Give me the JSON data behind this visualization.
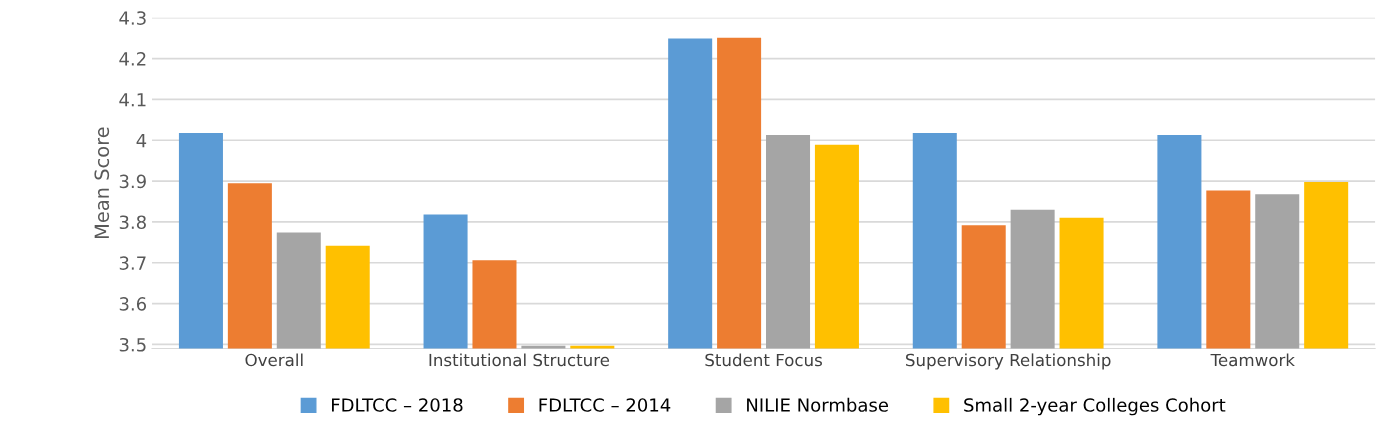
{
  "chart_data": {
    "type": "bar",
    "ylabel": "Mean Score",
    "categories": [
      "Overall",
      "Institutional Structure",
      "Student Focus",
      "Supervisory Relationship",
      "Teamwork"
    ],
    "series": [
      {
        "name": "FDLTCC – 2018",
        "color": "#5b9bd5",
        "values": [
          4.018,
          3.818,
          4.249,
          4.018,
          4.013
        ]
      },
      {
        "name": "FDLTCC – 2014",
        "color": "#ed7d31",
        "values": [
          3.895,
          3.706,
          4.251,
          3.792,
          3.877
        ]
      },
      {
        "name": "NILIE Normbase",
        "color": "#a5a5a5",
        "values": [
          3.774,
          3.497,
          4.013,
          3.83,
          3.868
        ]
      },
      {
        "name": "Small 2-year Colleges Cohort",
        "color": "#ffc000",
        "values": [
          3.742,
          3.497,
          3.989,
          3.81,
          3.898
        ]
      }
    ],
    "ylim": [
      3.49,
      4.3
    ],
    "yticks": [
      3.5,
      3.6,
      3.7,
      3.8,
      3.9,
      4,
      4.1,
      4.2,
      4.3
    ],
    "grid": "y",
    "legend": "bottom"
  }
}
